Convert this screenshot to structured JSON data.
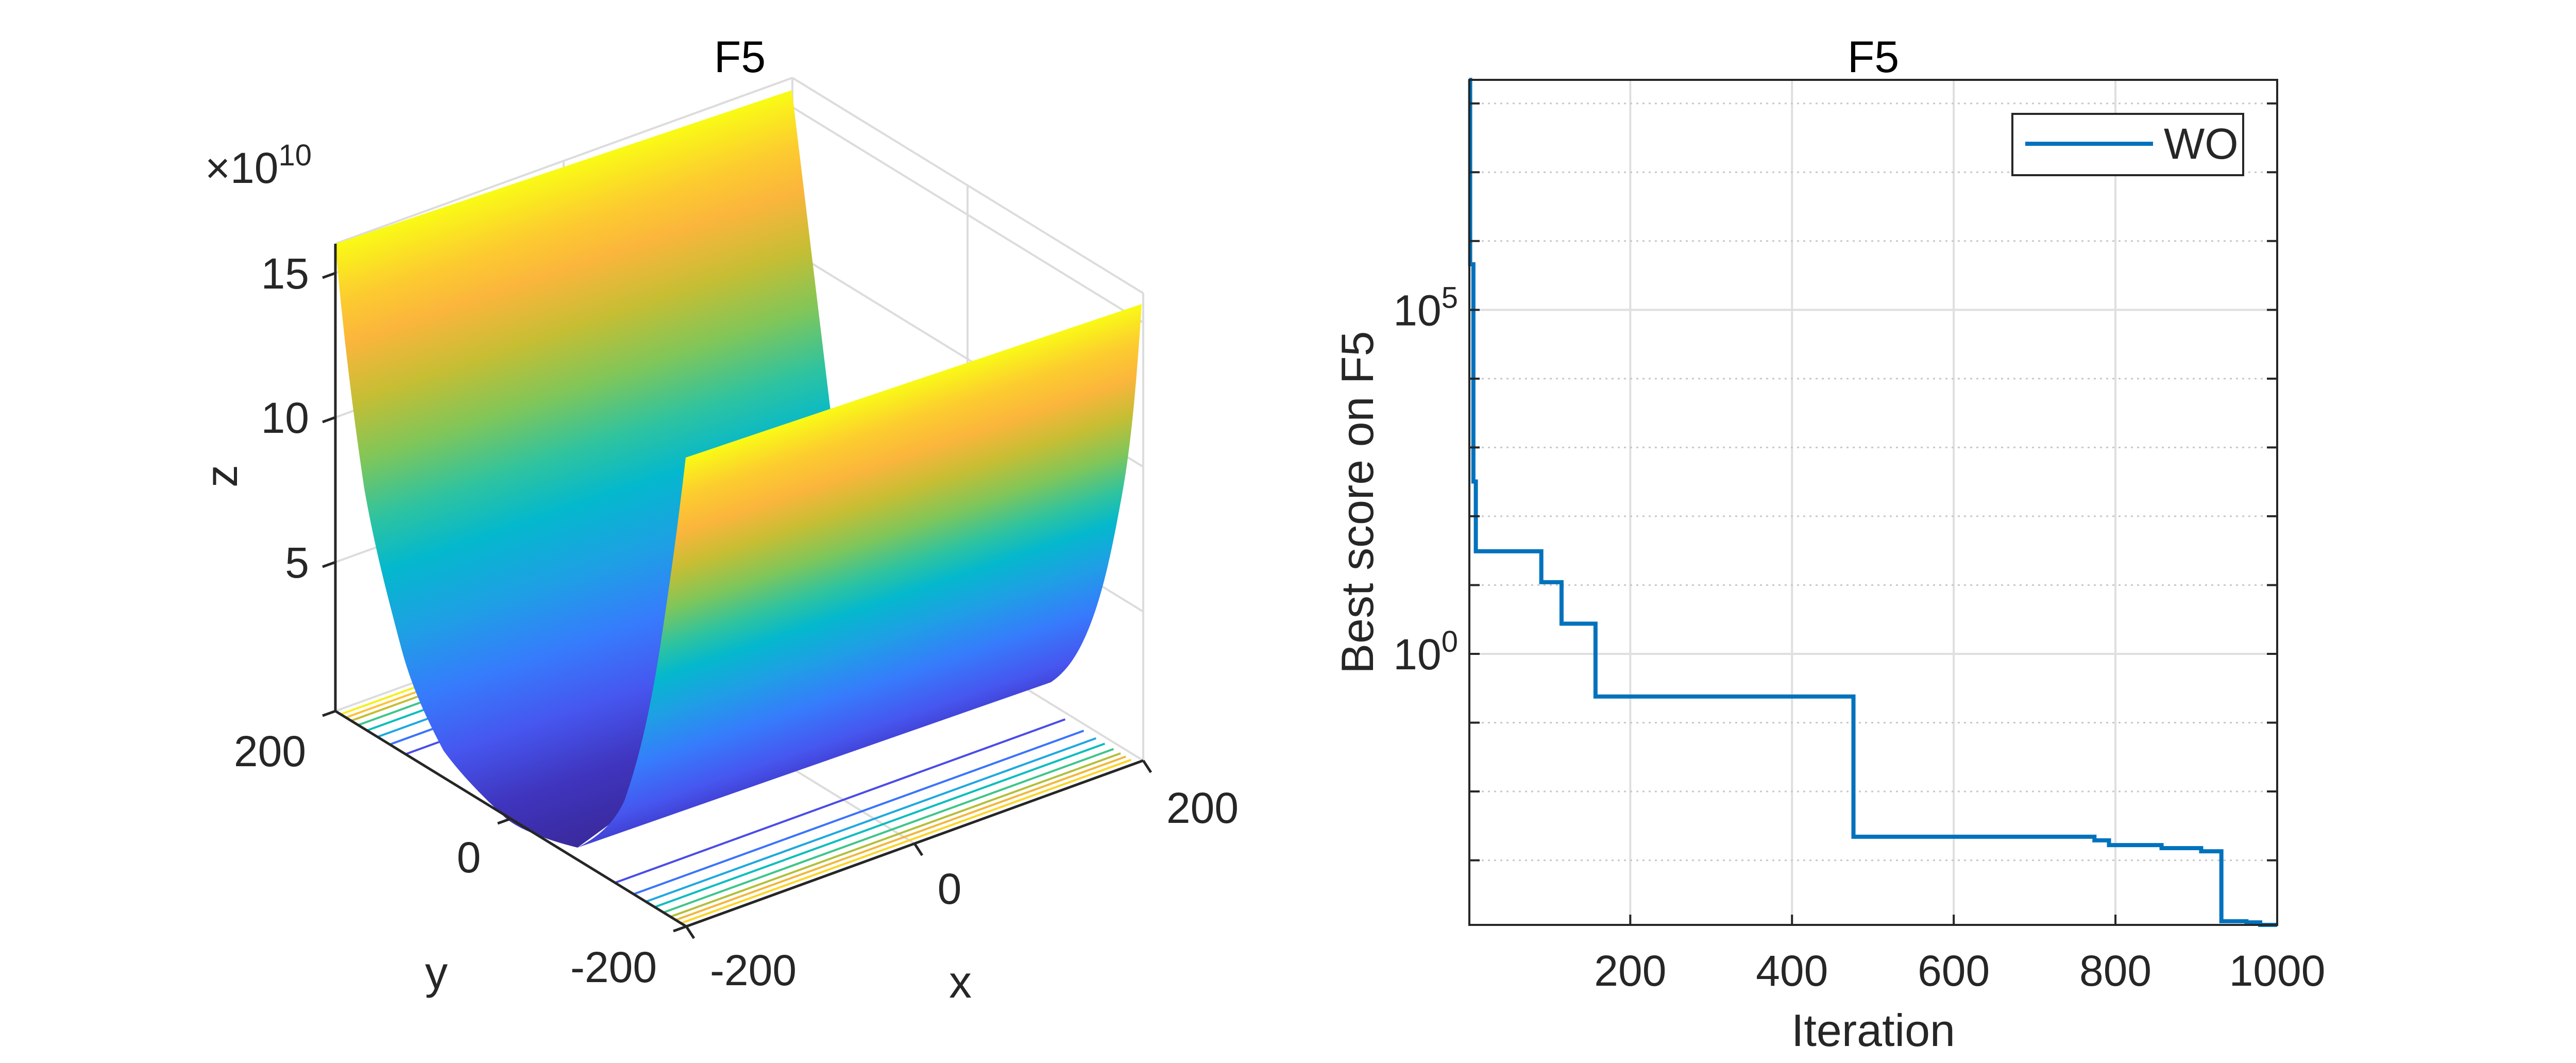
{
  "chart_data": [
    {
      "type": "surface",
      "title": "F5",
      "xlabel": "x",
      "ylabel": "y",
      "zlabel": "z",
      "xticks": [
        "-200",
        "0",
        "200"
      ],
      "yticks": [
        "-200",
        "0",
        "200"
      ],
      "zticks": [
        "5",
        "10",
        "15"
      ],
      "z_multiplier_base": "×10",
      "z_multiplier_exp": "10",
      "xlim": [
        -200,
        200
      ],
      "ylim": [
        -200,
        200
      ],
      "zlim": [
        0,
        160000000000.0
      ],
      "colormap": "parula",
      "contour_on_floor": true,
      "grid": true
    },
    {
      "type": "line",
      "title": "F5",
      "xlabel": "Iteration",
      "ylabel": "Best score on F5",
      "xscale": "linear",
      "yscale": "log",
      "xlim": [
        1,
        1000
      ],
      "ylim": [
        0.000115,
        220000000
      ],
      "xticks": [
        "200",
        "400",
        "600",
        "800",
        "1000"
      ],
      "yticks": [
        {
          "base": "10",
          "exp": "0"
        },
        {
          "base": "10",
          "exp": "5"
        }
      ],
      "grid": true,
      "legend": "top-right",
      "series": [
        {
          "name": "WO",
          "color": "#0072bd",
          "step": true,
          "x": [
            1,
            2,
            6,
            9,
            90,
            115,
            157,
            476,
            774,
            792,
            857,
            906,
            931,
            962,
            979,
            1000
          ],
          "y": [
            220000000,
            460000,
            320,
            31,
            11,
            2.75,
            0.24,
            0.0022,
            0.00195,
            0.00166,
            0.0015,
            0.00135,
            0.00013,
            0.000125,
            0.000115,
            0.000115
          ]
        }
      ]
    }
  ]
}
